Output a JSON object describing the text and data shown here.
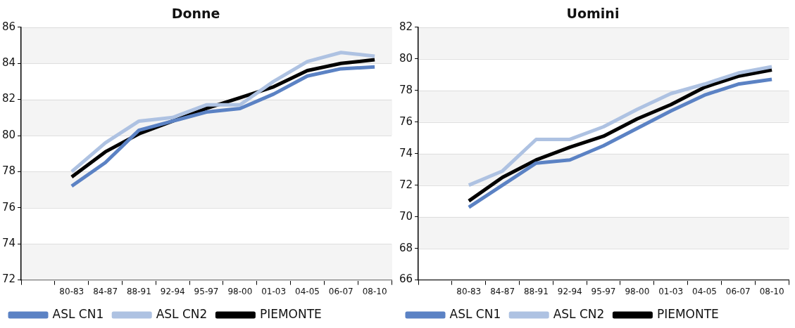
{
  "chart_data": [
    {
      "type": "line",
      "title": "Donne",
      "categories": [
        null,
        "80-83",
        "84-87",
        "88-91",
        "92-94",
        "95-97",
        "98-00",
        "01-03",
        "04-05",
        "06-07",
        "08-10"
      ],
      "series": [
        {
          "name": "ASL CN1",
          "color": "#5b82c4",
          "values": [
            null,
            77.2,
            78.5,
            80.3,
            80.8,
            81.3,
            81.5,
            82.3,
            83.3,
            83.7,
            83.8
          ]
        },
        {
          "name": "ASL CN2",
          "color": "#aec2e2",
          "values": [
            null,
            78.0,
            79.6,
            80.8,
            81.0,
            81.7,
            81.7,
            83.0,
            84.1,
            84.6,
            84.4
          ]
        },
        {
          "name": "PIEMONTE",
          "color": "#000000",
          "values": [
            null,
            77.7,
            79.1,
            80.1,
            80.8,
            81.5,
            82.1,
            82.7,
            83.6,
            84.0,
            84.2
          ]
        }
      ],
      "ylim": [
        72,
        86
      ],
      "yticks": [
        72,
        74,
        76,
        78,
        80,
        82,
        84,
        86
      ],
      "grid": "y",
      "legend": "bottom",
      "marker": "none",
      "line_style": "solid"
    },
    {
      "type": "line",
      "title": "Uomini",
      "categories": [
        null,
        "80-83",
        "84-87",
        "88-91",
        "92-94",
        "95-97",
        "98-00",
        "01-03",
        "04-05",
        "06-07",
        "08-10"
      ],
      "series": [
        {
          "name": "ASL CN1",
          "color": "#5b82c4",
          "values": [
            null,
            70.6,
            72.0,
            73.4,
            73.6,
            74.5,
            75.6,
            76.7,
            77.7,
            78.4,
            78.7
          ]
        },
        {
          "name": "ASL CN2",
          "color": "#aec2e2",
          "values": [
            null,
            72.0,
            72.9,
            74.9,
            74.9,
            75.7,
            76.8,
            77.8,
            78.4,
            79.1,
            79.5
          ]
        },
        {
          "name": "PIEMONTE",
          "color": "#000000",
          "values": [
            null,
            71.0,
            72.5,
            73.6,
            74.4,
            75.1,
            76.2,
            77.1,
            78.2,
            78.9,
            79.3
          ]
        }
      ],
      "ylim": [
        66,
        82
      ],
      "yticks": [
        66,
        68,
        70,
        72,
        74,
        76,
        78,
        80,
        82
      ],
      "grid": "y",
      "legend": "bottom",
      "marker": "none",
      "line_style": "solid"
    }
  ]
}
